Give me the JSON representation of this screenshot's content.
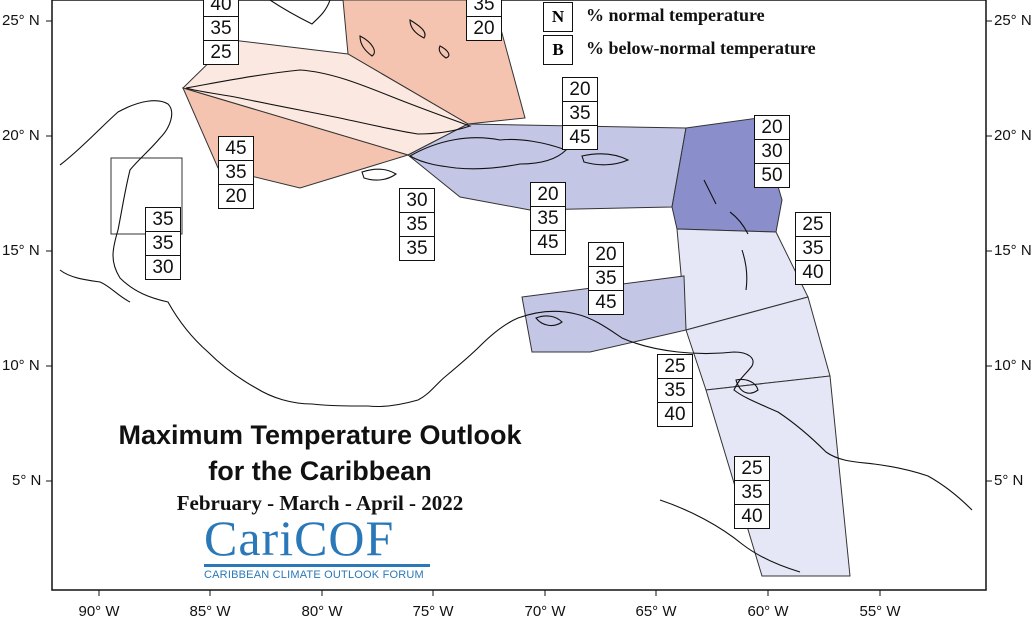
{
  "title": {
    "line1": "Maximum Temperature Outlook",
    "line2": "for the Caribbean",
    "period": "February - March - April - 2022"
  },
  "logo": {
    "main": "CariCOF",
    "subtitle": "CARIBBEAN CLIMATE OUTLOOK FORUM"
  },
  "legend": {
    "items": [
      {
        "key": "N",
        "label": "% normal temperature"
      },
      {
        "key": "B",
        "label": "% below-normal temperature"
      }
    ]
  },
  "axes": {
    "lat_labels": [
      "25° N",
      "20° N",
      "15° N",
      "10° N",
      "5° N"
    ],
    "lon_labels": [
      "90° W",
      "85° W",
      "80° W",
      "75° W",
      "70° W",
      "65° W",
      "60° W",
      "55° W"
    ]
  },
  "colors": {
    "above_45": "#f4c4b0",
    "above_40": "#fbe8e0",
    "below_45": "#c4c6e6",
    "below_50": "#8a8fcc",
    "below_40": "#e6e7f6",
    "coast": "#111111",
    "logo_blue": "#2a78b8"
  },
  "probability_stacks": [
    {
      "name": "bahamas-north",
      "values": [
        "40",
        "35",
        "25"
      ]
    },
    {
      "name": "bahamas-east",
      "values": [
        "35",
        "20"
      ]
    },
    {
      "name": "cuba-west",
      "values": [
        "45",
        "35",
        "20"
      ]
    },
    {
      "name": "belize",
      "values": [
        "35",
        "35",
        "30"
      ]
    },
    {
      "name": "jamaica",
      "values": [
        "30",
        "35",
        "35"
      ]
    },
    {
      "name": "hispaniola-north",
      "values": [
        "20",
        "35",
        "45"
      ]
    },
    {
      "name": "hispaniola-south",
      "values": [
        "20",
        "35",
        "45"
      ]
    },
    {
      "name": "leeward-islands",
      "values": [
        "20",
        "30",
        "50"
      ]
    },
    {
      "name": "windward-islands",
      "values": [
        "25",
        "35",
        "40"
      ]
    },
    {
      "name": "abc-islands",
      "values": [
        "20",
        "35",
        "45"
      ]
    },
    {
      "name": "trinidad",
      "values": [
        "25",
        "35",
        "40"
      ]
    },
    {
      "name": "guianas",
      "values": [
        "25",
        "35",
        "40"
      ]
    }
  ]
}
